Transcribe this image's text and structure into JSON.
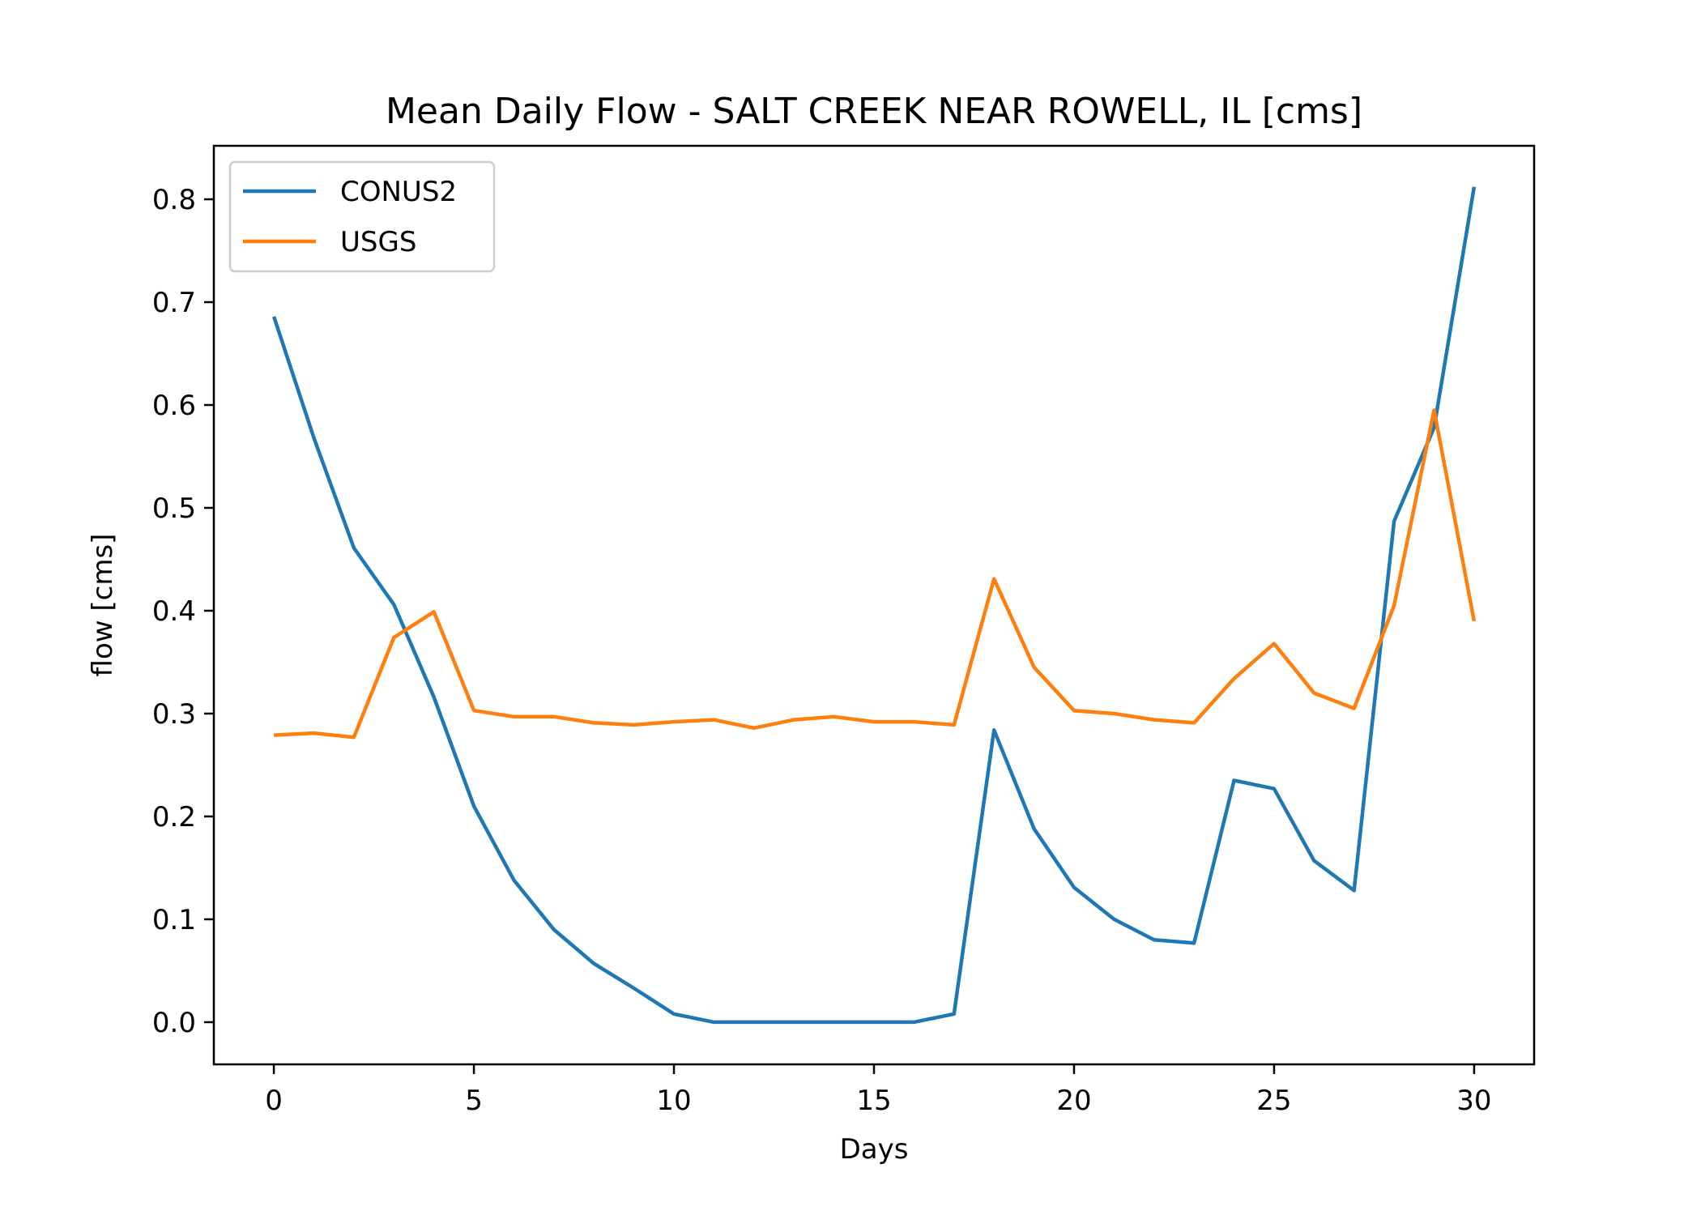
{
  "chart_data": {
    "type": "line",
    "title": "Mean Daily Flow - SALT CREEK NEAR ROWELL, IL [cms]",
    "xlabel": "Days",
    "ylabel": "flow [cms]",
    "xlim": [
      -1.5,
      31.5
    ],
    "ylim": [
      -0.041,
      0.852
    ],
    "xticks": [
      0,
      5,
      10,
      15,
      20,
      25,
      30
    ],
    "yticks": [
      0.0,
      0.1,
      0.2,
      0.3,
      0.4,
      0.5,
      0.6,
      0.7,
      0.8
    ],
    "xtick_labels": [
      "0",
      "5",
      "10",
      "15",
      "20",
      "25",
      "30"
    ],
    "ytick_labels": [
      "0.0",
      "0.1",
      "0.2",
      "0.3",
      "0.4",
      "0.5",
      "0.6",
      "0.7",
      "0.8"
    ],
    "grid": false,
    "legend": "upper left",
    "x": [
      0,
      1,
      2,
      3,
      4,
      5,
      6,
      7,
      8,
      9,
      10,
      11,
      12,
      13,
      14,
      15,
      16,
      17,
      18,
      19,
      20,
      21,
      22,
      23,
      24,
      25,
      26,
      27,
      28,
      29,
      30
    ],
    "series": [
      {
        "name": "CONUS2",
        "color": "#1f77b4",
        "values": [
          0.686,
          0.568,
          0.461,
          0.406,
          0.316,
          0.21,
          0.138,
          0.09,
          0.057,
          0.033,
          0.008,
          0.0,
          0.0,
          0.0,
          0.0,
          0.0,
          0.0,
          0.008,
          0.284,
          0.188,
          0.131,
          0.1,
          0.08,
          0.077,
          0.235,
          0.227,
          0.157,
          0.128,
          0.487,
          0.578,
          0.812
        ]
      },
      {
        "name": "USGS",
        "color": "#ff7f0e",
        "values": [
          0.279,
          0.281,
          0.277,
          0.374,
          0.399,
          0.303,
          0.297,
          0.297,
          0.291,
          0.289,
          0.292,
          0.294,
          0.286,
          0.294,
          0.297,
          0.292,
          0.292,
          0.289,
          0.431,
          0.345,
          0.303,
          0.3,
          0.294,
          0.291,
          0.334,
          0.368,
          0.32,
          0.305,
          0.405,
          0.595,
          0.39
        ]
      }
    ]
  }
}
